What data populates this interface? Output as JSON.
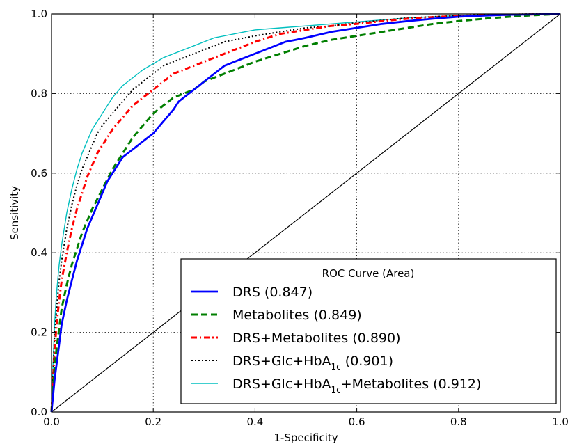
{
  "chart_data": {
    "type": "line",
    "title": "",
    "xlabel": "1-Specificity",
    "ylabel": "Sensitivity",
    "xlim": [
      0.0,
      1.0
    ],
    "ylim": [
      0.0,
      1.0
    ],
    "xticks": [
      "0.0",
      "0.2",
      "0.4",
      "0.6",
      "0.8",
      "1.0"
    ],
    "yticks": [
      "0.0",
      "0.2",
      "0.4",
      "0.6",
      "0.8",
      "1.0"
    ],
    "grid": true,
    "legend": {
      "title": "ROC Curve (Area)",
      "placement": "lower-right"
    },
    "series": [
      {
        "name": "DRS (0.847)",
        "label_main": "DRS (0.847)",
        "color": "#0000ff",
        "style": "solid",
        "x": [
          0,
          0.003,
          0.006,
          0.01,
          0.015,
          0.02,
          0.03,
          0.04,
          0.05,
          0.06,
          0.07,
          0.08,
          0.09,
          0.1,
          0.11,
          0.12,
          0.13,
          0.14,
          0.15,
          0.16,
          0.18,
          0.2,
          0.22,
          0.24,
          0.25,
          0.27,
          0.29,
          0.3,
          0.32,
          0.34,
          0.36,
          0.38,
          0.4,
          0.42,
          0.44,
          0.46,
          0.48,
          0.5,
          0.55,
          0.6,
          0.65,
          0.7,
          0.75,
          0.8,
          0.85,
          0.9,
          0.95,
          1.0
        ],
        "y": [
          0,
          0.04,
          0.08,
          0.12,
          0.17,
          0.22,
          0.28,
          0.33,
          0.38,
          0.42,
          0.46,
          0.49,
          0.52,
          0.55,
          0.58,
          0.6,
          0.62,
          0.64,
          0.65,
          0.66,
          0.68,
          0.7,
          0.73,
          0.76,
          0.78,
          0.8,
          0.82,
          0.83,
          0.85,
          0.87,
          0.88,
          0.89,
          0.9,
          0.91,
          0.92,
          0.93,
          0.935,
          0.94,
          0.955,
          0.965,
          0.975,
          0.982,
          0.988,
          0.993,
          0.996,
          0.998,
          0.999,
          1.0
        ]
      },
      {
        "name": "Metabolites (0.849)",
        "label_main": "Metabolites (0.849)",
        "color": "#007f00",
        "style": "dashed",
        "x": [
          0,
          0.003,
          0.006,
          0.01,
          0.015,
          0.02,
          0.03,
          0.04,
          0.05,
          0.06,
          0.07,
          0.08,
          0.1,
          0.12,
          0.14,
          0.16,
          0.18,
          0.2,
          0.22,
          0.24,
          0.26,
          0.28,
          0.3,
          0.32,
          0.34,
          0.36,
          0.38,
          0.4,
          0.45,
          0.5,
          0.55,
          0.6,
          0.65,
          0.7,
          0.75,
          0.8,
          0.85,
          0.9,
          0.95,
          1.0
        ],
        "y": [
          0,
          0.06,
          0.11,
          0.16,
          0.21,
          0.26,
          0.32,
          0.37,
          0.41,
          0.45,
          0.48,
          0.51,
          0.56,
          0.61,
          0.65,
          0.69,
          0.72,
          0.75,
          0.77,
          0.79,
          0.8,
          0.81,
          0.83,
          0.84,
          0.85,
          0.86,
          0.87,
          0.88,
          0.9,
          0.92,
          0.935,
          0.945,
          0.955,
          0.965,
          0.975,
          0.982,
          0.988,
          0.993,
          0.997,
          1.0
        ]
      },
      {
        "name": "DRS+Metabolites (0.890)",
        "label_main": "DRS+Metabolites (0.890)",
        "color": "#ff0000",
        "style": "dashdot",
        "x": [
          0,
          0.003,
          0.006,
          0.01,
          0.015,
          0.02,
          0.03,
          0.04,
          0.05,
          0.06,
          0.07,
          0.08,
          0.09,
          0.1,
          0.12,
          0.14,
          0.16,
          0.18,
          0.2,
          0.22,
          0.24,
          0.26,
          0.28,
          0.3,
          0.32,
          0.34,
          0.36,
          0.38,
          0.4,
          0.45,
          0.5,
          0.55,
          0.6,
          0.65,
          0.7,
          0.75,
          0.8,
          0.85,
          0.9,
          0.95,
          1.0
        ],
        "y": [
          0,
          0.08,
          0.15,
          0.22,
          0.28,
          0.33,
          0.4,
          0.46,
          0.51,
          0.55,
          0.59,
          0.62,
          0.65,
          0.67,
          0.71,
          0.74,
          0.77,
          0.79,
          0.81,
          0.83,
          0.85,
          0.86,
          0.87,
          0.88,
          0.89,
          0.9,
          0.91,
          0.92,
          0.93,
          0.95,
          0.96,
          0.97,
          0.975,
          0.982,
          0.988,
          0.992,
          0.995,
          0.997,
          0.998,
          0.999,
          1.0
        ]
      },
      {
        "name": "DRS+Glc+HbA1c (0.901)",
        "label_pre": "DRS+Glc+HbA",
        "label_sub": "1c",
        "label_post": " (0.901)",
        "color": "#000000",
        "style": "dotted",
        "x": [
          0,
          0.003,
          0.006,
          0.01,
          0.015,
          0.02,
          0.03,
          0.04,
          0.05,
          0.06,
          0.07,
          0.08,
          0.09,
          0.1,
          0.12,
          0.14,
          0.16,
          0.18,
          0.2,
          0.22,
          0.24,
          0.26,
          0.28,
          0.3,
          0.32,
          0.34,
          0.36,
          0.38,
          0.4,
          0.45,
          0.5,
          0.55,
          0.6,
          0.65,
          0.7,
          0.75,
          0.8,
          0.85,
          0.9,
          0.95,
          1.0
        ],
        "y": [
          0,
          0.1,
          0.19,
          0.26,
          0.33,
          0.38,
          0.46,
          0.52,
          0.57,
          0.61,
          0.64,
          0.67,
          0.7,
          0.72,
          0.75,
          0.78,
          0.81,
          0.83,
          0.85,
          0.87,
          0.88,
          0.89,
          0.9,
          0.91,
          0.92,
          0.93,
          0.935,
          0.94,
          0.945,
          0.955,
          0.965,
          0.97,
          0.978,
          0.984,
          0.99,
          0.993,
          0.996,
          0.998,
          0.999,
          1.0,
          1.0
        ]
      },
      {
        "name": "DRS+Glc+HbA1c+Metabolites (0.912)",
        "label_pre": "DRS+Glc+HbA",
        "label_sub": "1c",
        "label_post": "+Metabolites (0.912)",
        "color": "#00bfbf",
        "style": "solid-thin",
        "x": [
          0,
          0.003,
          0.006,
          0.01,
          0.015,
          0.02,
          0.03,
          0.04,
          0.05,
          0.06,
          0.07,
          0.08,
          0.09,
          0.1,
          0.12,
          0.14,
          0.16,
          0.18,
          0.2,
          0.22,
          0.24,
          0.26,
          0.28,
          0.3,
          0.32,
          0.34,
          0.36,
          0.38,
          0.4,
          0.45,
          0.5,
          0.55,
          0.6,
          0.65,
          0.7,
          0.75,
          0.8,
          0.85,
          0.9,
          0.95,
          1.0
        ],
        "y": [
          0,
          0.12,
          0.22,
          0.3,
          0.37,
          0.42,
          0.5,
          0.56,
          0.61,
          0.65,
          0.68,
          0.71,
          0.73,
          0.75,
          0.79,
          0.82,
          0.84,
          0.86,
          0.875,
          0.89,
          0.9,
          0.91,
          0.92,
          0.93,
          0.94,
          0.945,
          0.95,
          0.955,
          0.96,
          0.965,
          0.97,
          0.975,
          0.98,
          0.985,
          0.99,
          0.993,
          0.996,
          0.998,
          0.999,
          1.0,
          1.0
        ]
      }
    ],
    "reference_line": {
      "x": [
        0,
        1
      ],
      "y": [
        0,
        1
      ],
      "color": "#000000"
    }
  }
}
